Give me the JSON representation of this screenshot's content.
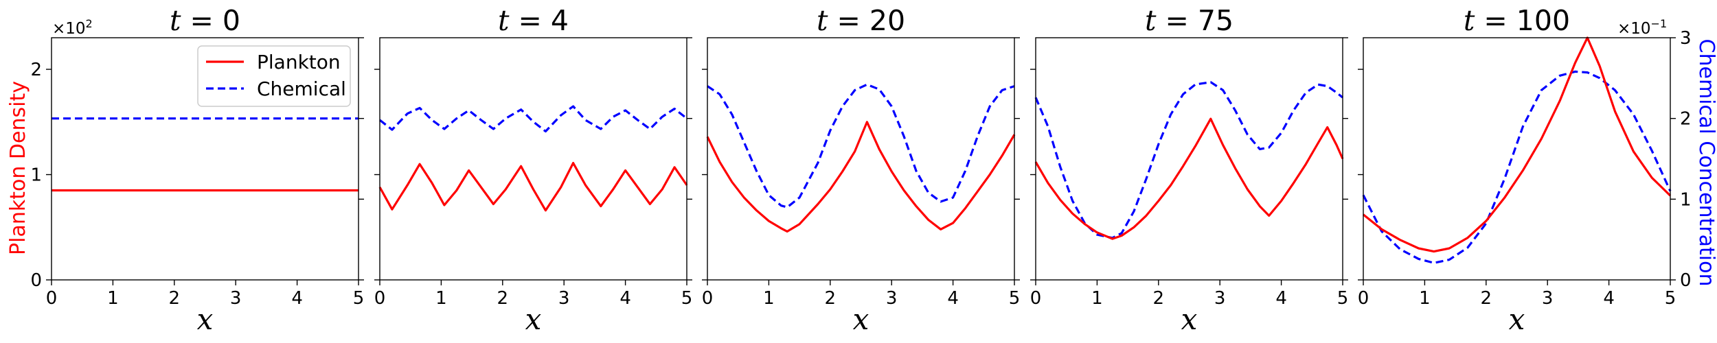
{
  "chart_data": {
    "type": "line",
    "left_axis_label": "Plankton Density",
    "right_axis_label": "Chemical Concentration",
    "left_multiplier": "×10",
    "left_multiplier_exp": "2",
    "right_multiplier": "×10",
    "right_multiplier_exp": "−1",
    "legend": [
      "Plankton",
      "Chemical"
    ],
    "xlabel": "x",
    "xlim": [
      0,
      5
    ],
    "xticks": [
      "0",
      "1",
      "2",
      "3",
      "4",
      "5"
    ],
    "left_ylim": [
      0,
      2.3
    ],
    "left_yticks": [
      "0",
      "1",
      "2"
    ],
    "right_ylim": [
      0,
      3
    ],
    "right_yticks": [
      "0",
      "1",
      "2",
      "3"
    ],
    "colors": {
      "plankton": "#ff0000",
      "chemical": "#0000ff"
    },
    "panels": [
      {
        "title_var": "t",
        "title_val": "0",
        "x": [
          0,
          1,
          2,
          3,
          4,
          5
        ],
        "plankton": [
          0.85,
          0.85,
          0.85,
          0.85,
          0.85,
          0.85
        ],
        "chemical": [
          2.0,
          2.0,
          2.0,
          2.0,
          2.0,
          2.0
        ]
      },
      {
        "title_var": "t",
        "title_val": "4",
        "x": [
          0,
          0.2,
          0.45,
          0.65,
          0.85,
          1.05,
          1.25,
          1.45,
          1.65,
          1.85,
          2.05,
          2.3,
          2.5,
          2.7,
          2.95,
          3.15,
          3.35,
          3.6,
          3.8,
          4.0,
          4.2,
          4.4,
          4.6,
          4.8,
          5.0
        ],
        "plankton": [
          0.88,
          0.67,
          0.9,
          1.1,
          0.92,
          0.71,
          0.85,
          1.04,
          0.88,
          0.72,
          0.86,
          1.08,
          0.86,
          0.66,
          0.88,
          1.11,
          0.9,
          0.7,
          0.86,
          1.04,
          0.88,
          0.72,
          0.86,
          1.07,
          0.9
        ],
        "chemical": [
          1.98,
          1.86,
          2.06,
          2.13,
          1.98,
          1.87,
          2.0,
          2.1,
          1.98,
          1.87,
          2.0,
          2.11,
          1.96,
          1.84,
          2.04,
          2.15,
          1.98,
          1.87,
          2.02,
          2.1,
          1.98,
          1.87,
          2.02,
          2.12,
          2.0
        ]
      },
      {
        "title_var": "t",
        "title_val": "20",
        "x": [
          0,
          0.2,
          0.4,
          0.6,
          0.8,
          1.0,
          1.2,
          1.3,
          1.5,
          1.8,
          2.0,
          2.2,
          2.4,
          2.6,
          2.8,
          3.0,
          3.2,
          3.4,
          3.6,
          3.8,
          4.0,
          4.2,
          4.4,
          4.6,
          4.8,
          5.0
        ],
        "plankton": [
          1.36,
          1.12,
          0.93,
          0.78,
          0.66,
          0.56,
          0.49,
          0.46,
          0.53,
          0.72,
          0.86,
          1.03,
          1.22,
          1.5,
          1.24,
          1.03,
          0.85,
          0.7,
          0.57,
          0.48,
          0.54,
          0.68,
          0.84,
          1.0,
          1.18,
          1.38
        ],
        "chemical": [
          2.4,
          2.3,
          2.05,
          1.7,
          1.35,
          1.05,
          0.92,
          0.9,
          1.02,
          1.45,
          1.85,
          2.15,
          2.35,
          2.42,
          2.36,
          2.15,
          1.78,
          1.35,
          1.08,
          0.97,
          1.02,
          1.35,
          1.78,
          2.15,
          2.35,
          2.4
        ]
      },
      {
        "title_var": "t",
        "title_val": "75",
        "x": [
          0,
          0.2,
          0.4,
          0.6,
          0.8,
          1.0,
          1.25,
          1.4,
          1.6,
          1.8,
          2.0,
          2.2,
          2.4,
          2.6,
          2.85,
          3.05,
          3.25,
          3.45,
          3.65,
          3.8,
          4.0,
          4.2,
          4.4,
          4.6,
          4.75,
          4.9,
          5.0
        ],
        "plankton": [
          1.12,
          0.92,
          0.76,
          0.63,
          0.53,
          0.45,
          0.39,
          0.42,
          0.5,
          0.61,
          0.75,
          0.9,
          1.08,
          1.27,
          1.53,
          1.28,
          1.06,
          0.86,
          0.7,
          0.61,
          0.75,
          0.92,
          1.1,
          1.3,
          1.45,
          1.28,
          1.15
        ],
        "chemical": [
          2.26,
          1.9,
          1.4,
          0.98,
          0.7,
          0.56,
          0.52,
          0.58,
          0.85,
          1.25,
          1.68,
          2.05,
          2.3,
          2.42,
          2.45,
          2.35,
          2.1,
          1.8,
          1.62,
          1.64,
          1.82,
          2.1,
          2.32,
          2.42,
          2.4,
          2.32,
          2.26
        ]
      },
      {
        "title_var": "t",
        "title_val": "100",
        "x": [
          0,
          0.3,
          0.6,
          0.9,
          1.15,
          1.4,
          1.7,
          2.0,
          2.3,
          2.6,
          2.9,
          3.2,
          3.45,
          3.65,
          3.85,
          4.1,
          4.4,
          4.7,
          5.0
        ],
        "plankton": [
          0.62,
          0.48,
          0.38,
          0.3,
          0.27,
          0.3,
          0.4,
          0.56,
          0.78,
          1.04,
          1.34,
          1.7,
          2.06,
          2.3,
          2.03,
          1.6,
          1.22,
          0.97,
          0.8
        ],
        "chemical": [
          1.05,
          0.6,
          0.38,
          0.26,
          0.21,
          0.25,
          0.4,
          0.7,
          1.25,
          1.9,
          2.35,
          2.53,
          2.58,
          2.57,
          2.5,
          2.35,
          2.05,
          1.6,
          1.1
        ]
      }
    ]
  }
}
